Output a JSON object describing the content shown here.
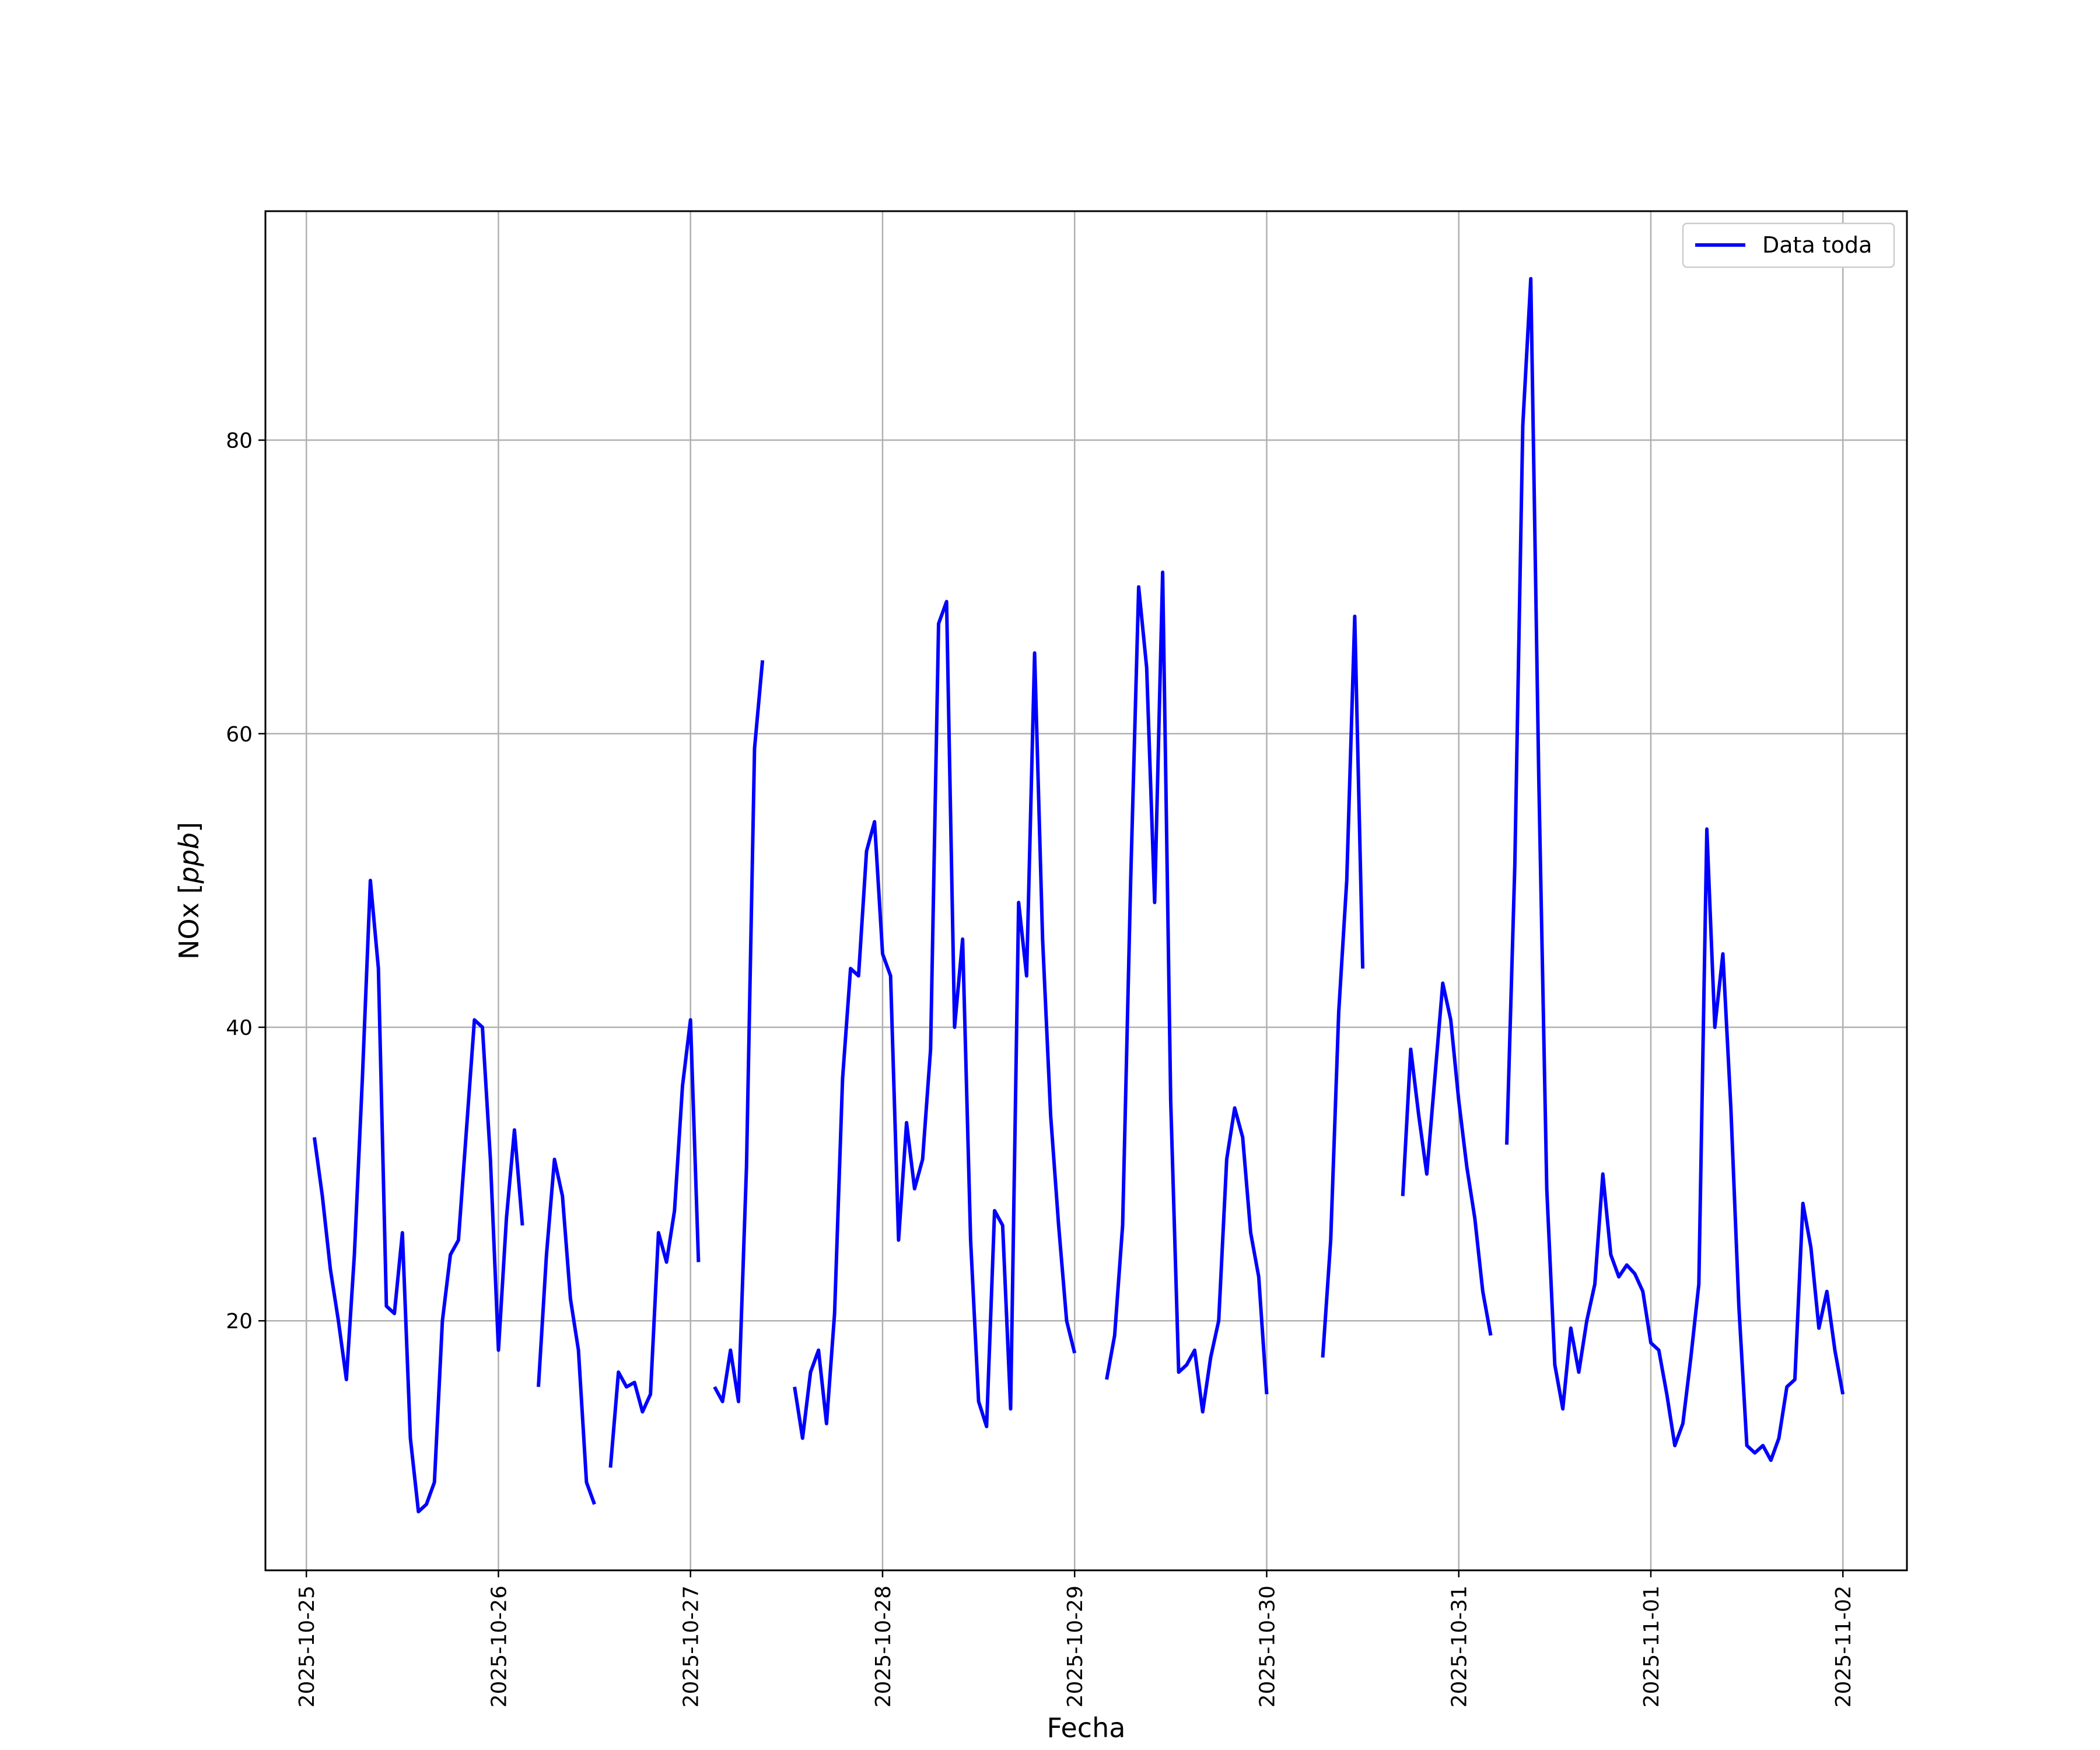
{
  "chart_data": {
    "type": "line",
    "xlabel": "Fecha",
    "ylabel": "NOx [",
    "ylabel_italic": "ppb",
    "ylabel_suffix": "]",
    "x_tick_labels": [
      "2025-10-25",
      "2025-10-26",
      "2025-10-27",
      "2025-10-28",
      "2025-10-29",
      "2025-10-30",
      "2025-10-31",
      "2025-11-01",
      "2025-11-02"
    ],
    "y_ticks": [
      20,
      40,
      60,
      80
    ],
    "y_tick_labels": [
      "20",
      "40",
      "60",
      "80"
    ],
    "xlim": [
      "2025-10-24 18:53",
      "2025-11-02 08:00"
    ],
    "ylim": [
      3,
      95.6
    ],
    "grid": true,
    "legend_position": "top-right",
    "series": [
      {
        "name": "Data toda",
        "color": "#0000ff",
        "segments": [
          [
            [
              "2025-10-25 01:00",
              32.5
            ],
            [
              "2025-10-25 02:00",
              28.5
            ],
            [
              "2025-10-25 03:00",
              23.5
            ],
            [
              "2025-10-25 04:00",
              20.0
            ],
            [
              "2025-10-25 05:00",
              16.0
            ],
            [
              "2025-10-25 06:00",
              24.5
            ],
            [
              "2025-10-25 07:00",
              36.5
            ],
            [
              "2025-10-25 08:00",
              50.0
            ],
            [
              "2025-10-25 09:00",
              44.0
            ],
            [
              "2025-10-25 10:00",
              21.0
            ],
            [
              "2025-10-25 11:00",
              20.5
            ],
            [
              "2025-10-25 12:00",
              26.0
            ],
            [
              "2025-10-25 13:00",
              12.0
            ],
            [
              "2025-10-25 14:00",
              7.0
            ],
            [
              "2025-10-25 15:00",
              7.5
            ],
            [
              "2025-10-25 16:00",
              9.0
            ],
            [
              "2025-10-25 17:00",
              20.0
            ],
            [
              "2025-10-25 18:00",
              24.5
            ],
            [
              "2025-10-25 19:00",
              25.5
            ],
            [
              "2025-10-25 20:00",
              33.0
            ],
            [
              "2025-10-25 21:00",
              40.5
            ],
            [
              "2025-10-25 22:00",
              40.0
            ],
            [
              "2025-10-25 23:00",
              31.0
            ],
            [
              "2025-10-26 00:00",
              18.0
            ],
            [
              "2025-10-26 01:00",
              27.0
            ],
            [
              "2025-10-26 02:00",
              33.0
            ],
            [
              "2025-10-26 03:00",
              26.5
            ]
          ],
          [
            [
              "2025-10-26 05:00",
              15.5
            ],
            [
              "2025-10-26 06:00",
              24.5
            ],
            [
              "2025-10-26 07:00",
              31.0
            ],
            [
              "2025-10-26 08:00",
              28.5
            ],
            [
              "2025-10-26 09:00",
              21.5
            ],
            [
              "2025-10-26 10:00",
              18.0
            ],
            [
              "2025-10-26 11:00",
              9.0
            ],
            [
              "2025-10-26 12:00",
              7.5
            ]
          ],
          [
            [
              "2025-10-26 14:00",
              10.0
            ],
            [
              "2025-10-26 15:00",
              16.5
            ],
            [
              "2025-10-26 16:00",
              15.5
            ],
            [
              "2025-10-26 17:00",
              15.8
            ],
            [
              "2025-10-26 18:00",
              13.8
            ],
            [
              "2025-10-26 19:00",
              15.0
            ],
            [
              "2025-10-26 20:00",
              26.0
            ],
            [
              "2025-10-26 21:00",
              24.0
            ],
            [
              "2025-10-26 22:00",
              27.5
            ],
            [
              "2025-10-26 23:00",
              36.0
            ],
            [
              "2025-10-27 00:00",
              40.5
            ],
            [
              "2025-10-27 01:00",
              24.0
            ]
          ],
          [
            [
              "2025-10-27 03:00",
              15.5
            ],
            [
              "2025-10-27 04:00",
              14.5
            ],
            [
              "2025-10-27 05:00",
              18.0
            ],
            [
              "2025-10-27 06:00",
              14.5
            ],
            [
              "2025-10-27 07:00",
              30.5
            ],
            [
              "2025-10-27 08:00",
              59.0
            ],
            [
              "2025-10-27 09:00",
              65.0
            ]
          ],
          [
            [
              "2025-10-27 13:00",
              15.5
            ],
            [
              "2025-10-27 14:00",
              12.0
            ],
            [
              "2025-10-27 15:00",
              16.5
            ],
            [
              "2025-10-27 16:00",
              18.0
            ],
            [
              "2025-10-27 17:00",
              13.0
            ],
            [
              "2025-10-27 18:00",
              20.5
            ],
            [
              "2025-10-27 19:00",
              36.5
            ],
            [
              "2025-10-27 20:00",
              44.0
            ],
            [
              "2025-10-27 21:00",
              43.5
            ],
            [
              "2025-10-27 22:00",
              52.0
            ],
            [
              "2025-10-27 23:00",
              54.0
            ],
            [
              "2025-10-28 00:00",
              45.0
            ],
            [
              "2025-10-28 01:00",
              43.5
            ],
            [
              "2025-10-28 02:00",
              25.5
            ],
            [
              "2025-10-28 03:00",
              33.5
            ],
            [
              "2025-10-28 04:00",
              29.0
            ],
            [
              "2025-10-28 05:00",
              31.0
            ],
            [
              "2025-10-28 06:00",
              38.5
            ],
            [
              "2025-10-28 07:00",
              67.5
            ],
            [
              "2025-10-28 08:00",
              69.0
            ],
            [
              "2025-10-28 09:00",
              40.0
            ],
            [
              "2025-10-28 10:00",
              46.0
            ],
            [
              "2025-10-28 11:00",
              25.5
            ],
            [
              "2025-10-28 12:00",
              14.5
            ],
            [
              "2025-10-28 13:00",
              12.8
            ],
            [
              "2025-10-28 14:00",
              27.5
            ],
            [
              "2025-10-28 15:00",
              26.5
            ],
            [
              "2025-10-28 16:00",
              14.0
            ],
            [
              "2025-10-28 17:00",
              48.5
            ],
            [
              "2025-10-28 18:00",
              43.5
            ],
            [
              "2025-10-28 19:00",
              65.5
            ],
            [
              "2025-10-28 20:00",
              46.0
            ],
            [
              "2025-10-28 21:00",
              34.0
            ],
            [
              "2025-10-28 22:00",
              26.5
            ],
            [
              "2025-10-28 23:00",
              20.0
            ],
            [
              "2025-10-29 00:00",
              17.8
            ]
          ],
          [
            [
              "2025-10-29 04:00",
              16.0
            ],
            [
              "2025-10-29 05:00",
              19.0
            ],
            [
              "2025-10-29 06:00",
              26.5
            ],
            [
              "2025-10-29 07:00",
              50.0
            ],
            [
              "2025-10-29 08:00",
              70.0
            ],
            [
              "2025-10-29 09:00",
              64.5
            ],
            [
              "2025-10-29 10:00",
              48.5
            ],
            [
              "2025-10-29 11:00",
              71.0
            ],
            [
              "2025-10-29 12:00",
              35.0
            ],
            [
              "2025-10-29 13:00",
              16.5
            ],
            [
              "2025-10-29 14:00",
              17.0
            ],
            [
              "2025-10-29 15:00",
              18.0
            ],
            [
              "2025-10-29 16:00",
              13.8
            ],
            [
              "2025-10-29 17:00",
              17.5
            ],
            [
              "2025-10-29 18:00",
              20.0
            ],
            [
              "2025-10-29 19:00",
              31.0
            ],
            [
              "2025-10-29 20:00",
              34.5
            ],
            [
              "2025-10-29 21:00",
              32.5
            ],
            [
              "2025-10-29 22:00",
              26.0
            ],
            [
              "2025-10-29 23:00",
              23.0
            ],
            [
              "2025-10-30 00:00",
              15.0
            ]
          ],
          [
            [
              "2025-10-30 07:00",
              17.5
            ],
            [
              "2025-10-30 08:00",
              25.5
            ],
            [
              "2025-10-30 09:00",
              41.0
            ],
            [
              "2025-10-30 10:00",
              50.0
            ],
            [
              "2025-10-30 11:00",
              68.0
            ],
            [
              "2025-10-30 12:00",
              44.0
            ]
          ],
          [
            [
              "2025-10-30 17:00",
              28.5
            ],
            [
              "2025-10-30 18:00",
              38.5
            ],
            [
              "2025-10-30 19:00",
              34.0
            ],
            [
              "2025-10-30 20:00",
              30.0
            ],
            [
              "2025-10-30 21:00",
              36.5
            ],
            [
              "2025-10-30 22:00",
              43.0
            ],
            [
              "2025-10-30 23:00",
              40.5
            ],
            [
              "2025-10-31 00:00",
              35.0
            ],
            [
              "2025-10-31 01:00",
              30.5
            ],
            [
              "2025-10-31 02:00",
              27.0
            ],
            [
              "2025-10-31 03:00",
              22.0
            ],
            [
              "2025-10-31 04:00",
              19.0
            ]
          ],
          [
            [
              "2025-10-31 06:00",
              32.0
            ],
            [
              "2025-10-31 07:00",
              51.0
            ],
            [
              "2025-10-31 08:00",
              81.0
            ],
            [
              "2025-10-31 09:00",
              91.0
            ],
            [
              "2025-10-31 10:00",
              57.0
            ],
            [
              "2025-10-31 11:00",
              29.0
            ],
            [
              "2025-10-31 12:00",
              17.0
            ],
            [
              "2025-10-31 13:00",
              14.0
            ],
            [
              "2025-10-31 14:00",
              19.5
            ],
            [
              "2025-10-31 15:00",
              16.5
            ],
            [
              "2025-10-31 16:00",
              20.0
            ],
            [
              "2025-10-31 17:00",
              22.5
            ],
            [
              "2025-10-31 18:00",
              30.0
            ],
            [
              "2025-10-31 19:00",
              24.5
            ],
            [
              "2025-10-31 20:00",
              23.0
            ],
            [
              "2025-10-31 21:00",
              23.8
            ],
            [
              "2025-10-31 22:00",
              23.2
            ],
            [
              "2025-10-31 23:00",
              22.0
            ],
            [
              "2025-11-01 00:00",
              18.5
            ],
            [
              "2025-11-01 01:00",
              18.0
            ],
            [
              "2025-11-01 02:00",
              15.0
            ],
            [
              "2025-11-01 03:00",
              11.5
            ],
            [
              "2025-11-01 04:00",
              13.0
            ],
            [
              "2025-11-01 05:00",
              17.5
            ],
            [
              "2025-11-01 06:00",
              22.5
            ],
            [
              "2025-11-01 07:00",
              53.5
            ],
            [
              "2025-11-01 08:00",
              40.0
            ],
            [
              "2025-11-01 09:00",
              45.0
            ],
            [
              "2025-11-01 10:00",
              34.5
            ],
            [
              "2025-11-01 11:00",
              21.0
            ],
            [
              "2025-11-01 12:00",
              11.5
            ],
            [
              "2025-11-01 13:00",
              11.0
            ],
            [
              "2025-11-01 14:00",
              11.5
            ],
            [
              "2025-11-01 15:00",
              10.5
            ],
            [
              "2025-11-01 16:00",
              12.0
            ],
            [
              "2025-11-01 17:00",
              15.5
            ],
            [
              "2025-11-01 18:00",
              16.0
            ],
            [
              "2025-11-01 19:00",
              28.0
            ],
            [
              "2025-11-01 20:00",
              25.0
            ],
            [
              "2025-11-01 21:00",
              19.5
            ],
            [
              "2025-11-01 22:00",
              22.0
            ],
            [
              "2025-11-01 23:00",
              18.0
            ],
            [
              "2025-11-02 00:00",
              15.0
            ]
          ]
        ]
      }
    ]
  }
}
